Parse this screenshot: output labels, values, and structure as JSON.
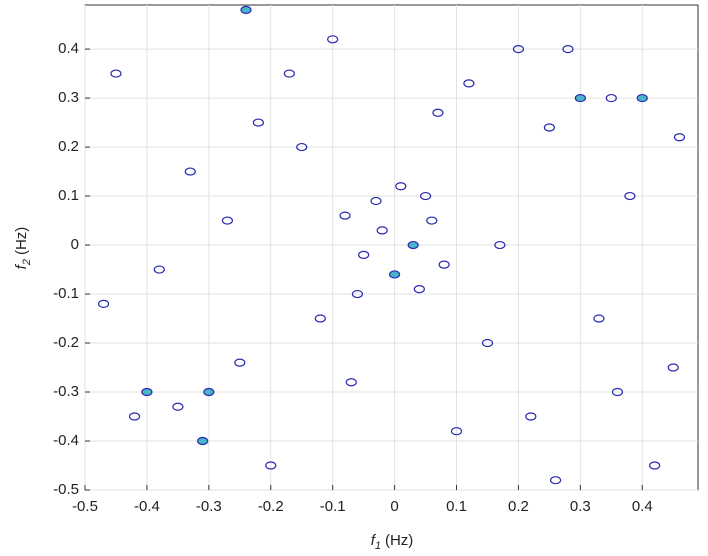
{
  "chart_data": {
    "type": "contour",
    "xlabel": {
      "symbol": "f",
      "subscript": "1",
      "unit": "(Hz)"
    },
    "ylabel": {
      "symbol": "f",
      "subscript": "2",
      "unit": "(Hz)"
    },
    "xlim": [
      -0.5,
      0.49
    ],
    "ylim": [
      -0.5,
      0.49
    ],
    "xticks": [
      -0.5,
      -0.4,
      -0.3,
      -0.2,
      -0.1,
      0,
      0.1,
      0.2,
      0.3,
      0.4
    ],
    "yticks": [
      -0.5,
      -0.4,
      -0.3,
      -0.2,
      -0.1,
      0,
      0.1,
      0.2,
      0.3,
      0.4
    ],
    "grid": true,
    "series": [
      {
        "color": "#2a2ab0",
        "x": [
          -0.02,
          0.03,
          -0.05,
          0.06,
          0.0,
          -0.08,
          0.08,
          0.04,
          -0.03,
          0.01,
          -0.06,
          0.05,
          -0.4,
          -0.35,
          -0.3,
          -0.31,
          -0.42,
          0.3,
          0.28,
          0.35,
          0.4,
          0.25,
          -0.25,
          -0.24,
          0.42,
          0.46,
          -0.45,
          -0.15,
          0.15,
          0.2,
          -0.2,
          0.12,
          -0.12,
          0.33,
          -0.33,
          0.22,
          -0.22,
          0.1,
          -0.1,
          0.38,
          -0.38,
          0.45,
          -0.47,
          0.17,
          -0.17,
          0.07,
          -0.07,
          0.26,
          -0.27,
          0.36
        ],
        "y": [
          0.03,
          0.0,
          -0.02,
          0.05,
          -0.06,
          0.06,
          -0.04,
          -0.09,
          0.09,
          0.12,
          -0.1,
          0.1,
          -0.3,
          -0.33,
          -0.3,
          -0.4,
          -0.35,
          0.3,
          0.4,
          0.3,
          0.3,
          0.24,
          -0.24,
          0.48,
          -0.45,
          0.22,
          0.35,
          0.2,
          -0.2,
          0.4,
          -0.45,
          0.33,
          -0.15,
          -0.15,
          0.15,
          -0.35,
          0.25,
          -0.38,
          0.42,
          0.1,
          -0.05,
          -0.25,
          -0.12,
          0.0,
          0.35,
          0.27,
          -0.28,
          -0.48,
          0.05,
          -0.3
        ],
        "fill": [
          null,
          "#49b6c8",
          null,
          null,
          "#49b6c8",
          null,
          null,
          null,
          null,
          null,
          null,
          null,
          "#49b6c8",
          null,
          "#49b6c8",
          "#49b6c8",
          null,
          "#49b6c8",
          null,
          null,
          "#49b6c8",
          null,
          null,
          "#49b6c8",
          null,
          null,
          null,
          null,
          null,
          null,
          null,
          null,
          null,
          null,
          null,
          null,
          null,
          null,
          null,
          null,
          null,
          null,
          null,
          null,
          null,
          null,
          null,
          null,
          null,
          null
        ]
      }
    ]
  }
}
